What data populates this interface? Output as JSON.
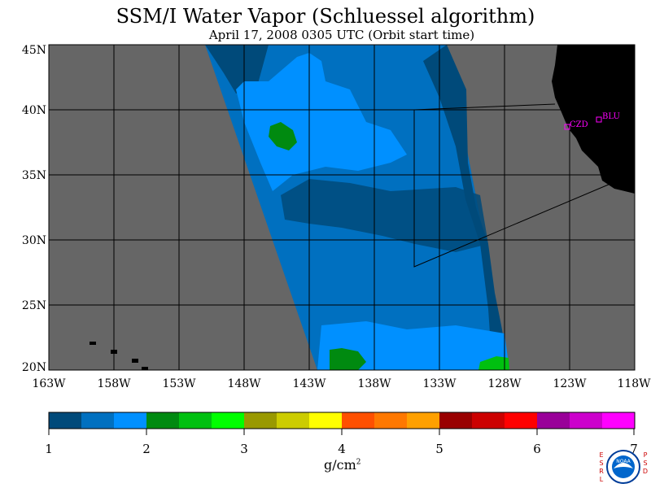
{
  "header": {
    "title": "SSM/I Water Vapor (Schluessel algorithm)",
    "subtitle": "April 17, 2008  0305 UTC  (Orbit start time)"
  },
  "map": {
    "lon_labels": [
      "163W",
      "158W",
      "153W",
      "148W",
      "143W",
      "138W",
      "133W",
      "128W",
      "123W",
      "118W"
    ],
    "lat_labels": [
      "45N",
      "40N",
      "35N",
      "30N",
      "25N",
      "20N"
    ],
    "lon_range": [
      -163,
      -118
    ],
    "lat_range": [
      20,
      45
    ],
    "stations": [
      {
        "id": "CZD",
        "lon": -123.4,
        "lat": 38.6
      },
      {
        "id": "BLU",
        "lon": -121.0,
        "lat": 39.3
      }
    ],
    "colors": {
      "no_data": "#666666",
      "land": "#000000",
      "station": "#ff00ff"
    }
  },
  "colorbar": {
    "labels": [
      "1",
      "2",
      "3",
      "4",
      "5",
      "6",
      "7"
    ],
    "colors": [
      "#004a7a",
      "#0070c0",
      "#0090ff",
      "#008a10",
      "#00c010",
      "#00ff00",
      "#999900",
      "#cccc00",
      "#ffff00",
      "#ff5000",
      "#ff7800",
      "#ffa000",
      "#990000",
      "#cc0000",
      "#ff0000",
      "#990099",
      "#cc00cc",
      "#ff00ff"
    ],
    "units": "g/cm",
    "units_power": "2",
    "range": [
      1,
      7
    ]
  },
  "logo": {
    "left_text": "ESRL",
    "right_text": "PSD",
    "emblem_text": "NOAA"
  }
}
